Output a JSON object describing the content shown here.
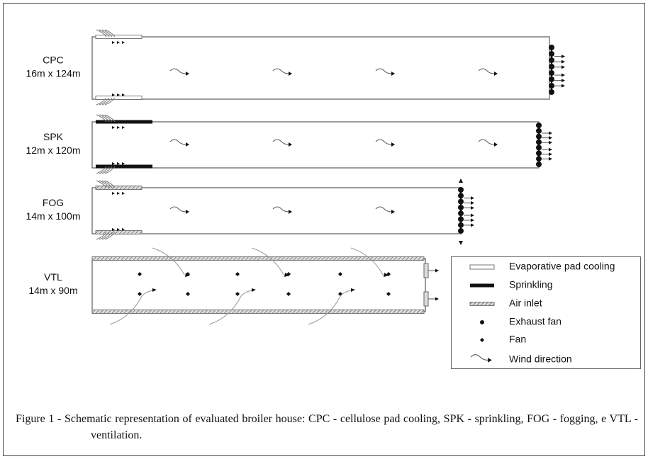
{
  "houses": [
    {
      "name": "CPC",
      "size": "16m x 124m"
    },
    {
      "name": "SPK",
      "size": "12m x 120m"
    },
    {
      "name": "FOG",
      "size": "14m x 100m"
    },
    {
      "name": "VTL",
      "size": "14m x 90m"
    }
  ],
  "legend": [
    "Evaporative pad cooling",
    "Sprinkling",
    "Air inlet",
    "Exhaust fan",
    "Fan",
    "Wind direction"
  ],
  "caption": "Figure 1 - Schematic representation of evaluated broiler house: CPC - cellulose pad cooling, SPK - sprinkling, FOG - fogging, e VTL - ventilation."
}
